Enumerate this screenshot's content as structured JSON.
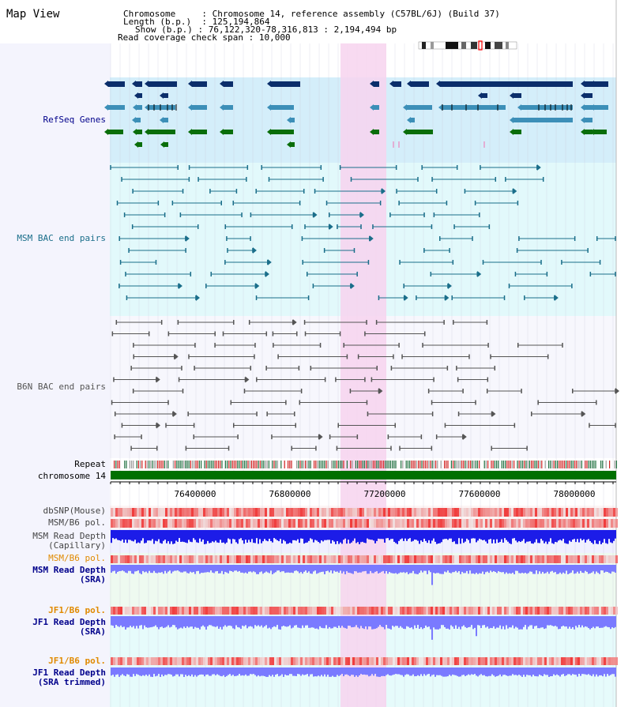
{
  "header": {
    "title": "Map View",
    "info": {
      "chromosome_label": "Chromosome",
      "chromosome_value": "Chromosome 14, reference assembly (C57BL/6J) (Build 37)",
      "length_label": "Length (b.p.)",
      "length_value": "125,194,864",
      "show_label": "Show (b.p.)",
      "show_value": "76,122,320-78,316,813 : 2,194,494 bp",
      "coverage_label": "Read coverage check span",
      "coverage_value": "10,000"
    }
  },
  "tracks": {
    "refseq": "RefSeq Genes",
    "msm_bac": "MSM BAC end pairs",
    "b6n_bac": "B6N BAC end pairs",
    "repeat": "Repeat",
    "chromosome": "chromosome 14",
    "dbsnp": "dbSNP(Mouse)",
    "msm_b6_pol": "MSM/B6 pol.",
    "msm_depth_cap_1": "MSM Read Depth",
    "msm_depth_cap_2": "(Capillary)",
    "msm_b6_pol_2": "MSM/B6 pol.",
    "msm_depth_sra_1": "MSM Read Depth",
    "msm_depth_sra_2": "(SRA)",
    "jf1_b6_pol": "JF1/B6 pol.",
    "jf1_depth_sra_1": "JF1 Read Depth",
    "jf1_depth_sra_2": "(SRA)",
    "jf1_b6_pol_2": "JF1/B6 pol.",
    "jf1_depth_trim_1": "JF1 Read Depth",
    "jf1_depth_trim_2": "(SRA trimmed)"
  },
  "axis": {
    "ticks": [
      "76400000",
      "76800000",
      "77200000",
      "77600000",
      "78000000"
    ]
  },
  "colors": {
    "refseq_bg": "#d4eefa",
    "refseq_dark": "#0b2e6b",
    "refseq_mid": "#3c8fb8",
    "refseq_green": "#0a6e0a",
    "msm_bac_bg": "#e2f9fb",
    "msm_bac_line": "#1a6e8a",
    "b6n_line": "#555555",
    "highlight": "#f7d3ef",
    "chrom_bar": "#007000",
    "label_blue": "#00008b",
    "label_teal": "#1a6e8a",
    "label_orange": "#e08a00",
    "depth_dark": "#1c1ce8",
    "depth_light": "#7a7aff"
  }
}
